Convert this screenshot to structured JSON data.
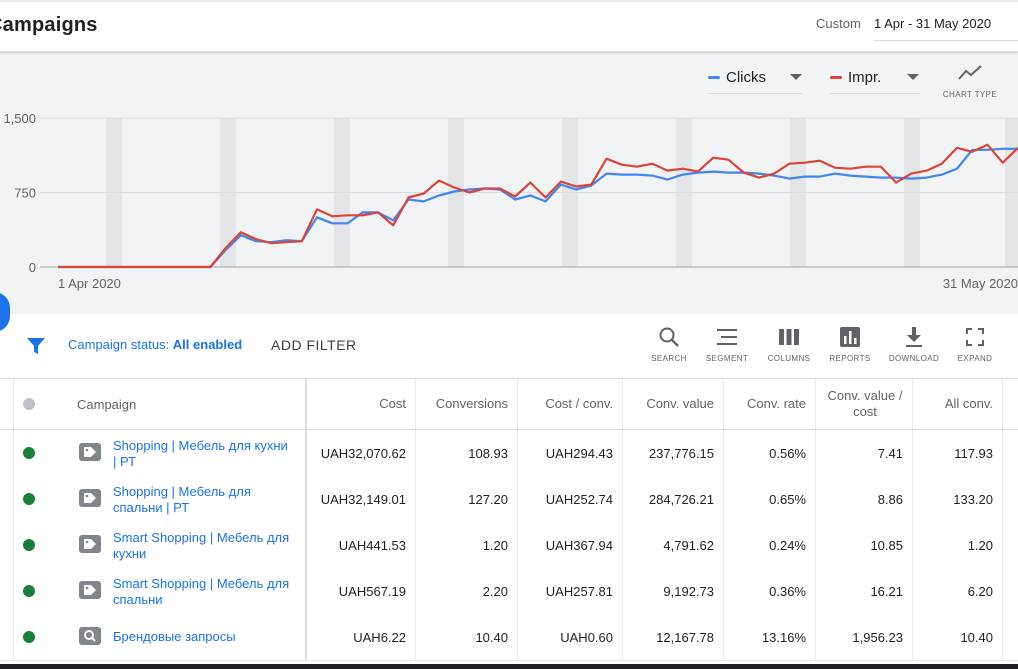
{
  "header": {
    "title": "Campaigns",
    "date_label": "Custom",
    "date_range": "1 Apr - 31 May 2020"
  },
  "chart_controls": {
    "metric1": "Clicks",
    "metric1_color": "#4285f4",
    "metric2": "Impr.",
    "metric2_color": "#db4437",
    "chart_type_label": "CHART TYPE"
  },
  "chart_data": {
    "type": "line",
    "x_labels": [
      "1 Apr 2020",
      "31 May 2020"
    ],
    "yticks": [
      "1,500",
      "750",
      "0"
    ],
    "ylim": [
      0,
      1500
    ],
    "grid": true,
    "series": [
      {
        "name": "Clicks",
        "color": "#4285f4",
        "values": [
          0,
          0,
          0,
          0,
          0,
          0,
          0,
          0,
          0,
          0,
          0,
          170,
          320,
          260,
          250,
          270,
          260,
          500,
          440,
          440,
          550,
          550,
          470,
          680,
          660,
          720,
          760,
          780,
          790,
          780,
          680,
          720,
          660,
          830,
          780,
          820,
          940,
          930,
          930,
          920,
          880,
          930,
          950,
          960,
          950,
          950,
          940,
          920,
          890,
          910,
          910,
          940,
          920,
          910,
          900,
          900,
          890,
          900,
          930,
          990,
          1180,
          1180,
          1190,
          1190
        ]
      },
      {
        "name": "Impr.",
        "color": "#db4437",
        "values": [
          0,
          0,
          0,
          0,
          0,
          0,
          0,
          0,
          0,
          0,
          0,
          190,
          350,
          280,
          240,
          250,
          260,
          580,
          510,
          520,
          520,
          550,
          420,
          700,
          740,
          870,
          800,
          750,
          790,
          790,
          710,
          850,
          700,
          860,
          810,
          830,
          1090,
          1030,
          1010,
          1040,
          970,
          990,
          960,
          1100,
          1080,
          950,
          900,
          940,
          1040,
          1050,
          1070,
          1000,
          990,
          1010,
          1010,
          850,
          940,
          970,
          1040,
          1200,
          1160,
          1230,
          1050,
          1200
        ]
      }
    ]
  },
  "filter_bar": {
    "status_label": "Campaign status:",
    "status_value": "All enabled",
    "add_filter": "ADD FILTER",
    "tools": [
      "SEARCH",
      "SEGMENT",
      "COLUMNS",
      "REPORTS",
      "DOWNLOAD",
      "EXPAND"
    ]
  },
  "table": {
    "columns": [
      "Campaign",
      "Cost",
      "Conversions",
      "Cost / conv.",
      "Conv. value",
      "Conv. rate",
      "Conv. value / cost",
      "All conv."
    ],
    "rows": [
      {
        "name": "Shopping | Мебель для кухни | РТ",
        "icon": "shopping-tag-icon",
        "cost": "UAH32,070.62",
        "conversions": "108.93",
        "cost_conv": "UAH294.43",
        "conv_value": "237,776.15",
        "conv_rate": "0.56%",
        "value_cost": "7.41",
        "all_conv": "117.93"
      },
      {
        "name": "Shopping | Мебель для спальни | РТ",
        "icon": "shopping-tag-icon",
        "cost": "UAH32,149.01",
        "conversions": "127.20",
        "cost_conv": "UAH252.74",
        "conv_value": "284,726.21",
        "conv_rate": "0.65%",
        "value_cost": "8.86",
        "all_conv": "133.20"
      },
      {
        "name": "Smart Shopping | Мебель для кухни",
        "icon": "shopping-tag-icon",
        "cost": "UAH441.53",
        "conversions": "1.20",
        "cost_conv": "UAH367.94",
        "conv_value": "4,791.62",
        "conv_rate": "0.24%",
        "value_cost": "10.85",
        "all_conv": "1.20"
      },
      {
        "name": "Smart Shopping | Мебель для спальни",
        "icon": "shopping-tag-icon",
        "cost": "UAH567.19",
        "conversions": "2.20",
        "cost_conv": "UAH257.81",
        "conv_value": "9,192.73",
        "conv_rate": "0.36%",
        "value_cost": "16.21",
        "all_conv": "6.20"
      },
      {
        "name": "Брендовые запросы",
        "icon": "search-campaign-icon",
        "cost": "UAH6.22",
        "conversions": "10.40",
        "cost_conv": "UAH0.60",
        "conv_value": "12,167.78",
        "conv_rate": "13.16%",
        "value_cost": "1,956.23",
        "all_conv": "10.40"
      }
    ]
  }
}
